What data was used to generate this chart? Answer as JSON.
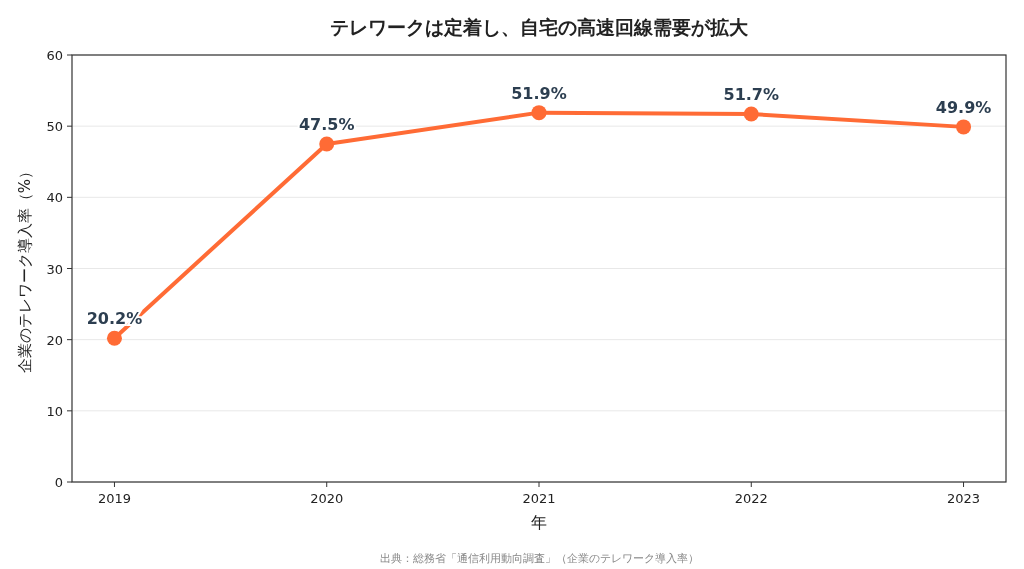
{
  "chart_data": {
    "type": "line",
    "title": "テレワークは定着し、自宅の高速回線需要が拡大",
    "xlabel": "年",
    "ylabel": "企業のテレワーク導入率（%）",
    "categories": [
      "2019",
      "2020",
      "2021",
      "2022",
      "2023"
    ],
    "series": [
      {
        "color": "#ff6b35",
        "values": [
          20.2,
          47.5,
          51.9,
          51.7,
          49.9
        ],
        "value_labels": [
          "20.2%",
          "47.5%",
          "51.9%",
          "51.7%",
          "49.9%"
        ]
      }
    ],
    "ylim": [
      0,
      60
    ],
    "yticks": [
      0,
      10,
      20,
      30,
      40,
      50,
      60
    ],
    "grid": "y",
    "marker": "circle",
    "line_style": "solid",
    "annotations": [
      "出典：総務省「通信利用動向調査」（企業のテレワーク導入率）"
    ]
  }
}
